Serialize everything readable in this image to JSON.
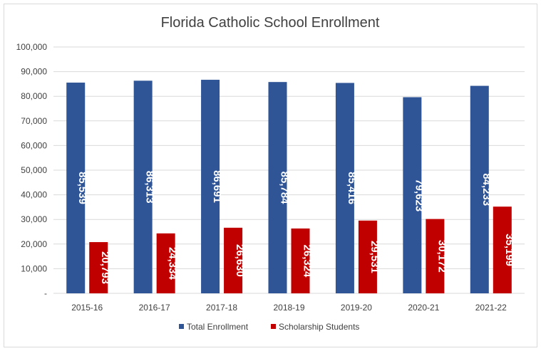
{
  "chart_data": {
    "type": "bar",
    "title": "Florida Catholic School Enrollment",
    "categories": [
      "2015-16",
      "2016-17",
      "2017-18",
      "2018-19",
      "2019-20",
      "2020-21",
      "2021-22"
    ],
    "series": [
      {
        "name": "Total Enrollment",
        "color": "#2f5597",
        "values": [
          85539,
          86313,
          86691,
          85784,
          85416,
          79623,
          84233
        ],
        "labels": [
          "85,539",
          "86,313",
          "86,691",
          "85,784",
          "85,416",
          "79,623",
          "84,233"
        ]
      },
      {
        "name": "Scholarship Students",
        "color": "#c00000",
        "values": [
          20793,
          24334,
          26630,
          26324,
          29531,
          30172,
          35199
        ],
        "labels": [
          "20,793",
          "24,334",
          "26,630",
          "26,324",
          "29,531",
          "30,172",
          "35,199"
        ]
      }
    ],
    "y_tick_labels": [
      "-",
      "10,000",
      "20,000",
      "30,000",
      "40,000",
      "50,000",
      "60,000",
      "70,000",
      "80,000",
      "90,000",
      "100,000"
    ],
    "ylim": [
      0,
      100000
    ],
    "grid": true,
    "legend_position": "bottom"
  }
}
